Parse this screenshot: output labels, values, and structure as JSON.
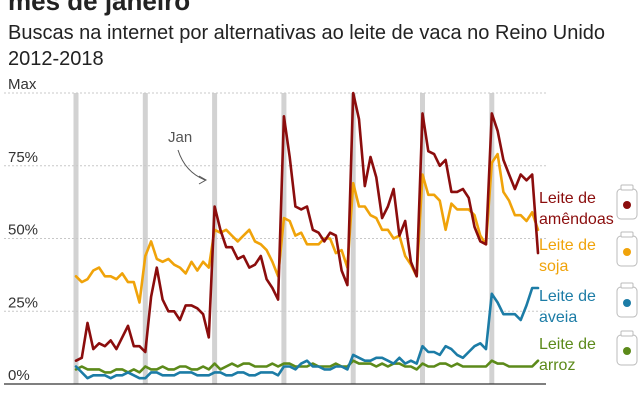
{
  "title": "mês de janeiro",
  "subtitle": "Buscas na internet por alternativas ao leite de vaca no Reino Unido 2012-2018",
  "chart_data": {
    "type": "line",
    "title": "Buscas na internet por alternativas ao leite de vaca no Reino Unido 2012-2018",
    "y_ticks": [
      {
        "value": 100,
        "label": "Max"
      },
      {
        "value": 75,
        "label": "75%"
      },
      {
        "value": 50,
        "label": "50%"
      },
      {
        "value": 25,
        "label": "25%"
      },
      {
        "value": 0,
        "label": "0%"
      }
    ],
    "ylim": [
      0,
      100
    ],
    "x_months": 81,
    "january_markers": [
      0,
      12,
      24,
      36,
      48,
      60,
      72
    ],
    "annotation": "Jan",
    "series": [
      {
        "name": "Leite de amêndoas",
        "label_lines": [
          "Leite de",
          "amêndoas"
        ],
        "color": "#8b0d0d",
        "values": [
          8,
          9,
          21,
          12,
          14,
          13,
          15,
          12,
          16,
          20,
          13,
          13,
          11,
          30,
          40,
          29,
          25,
          25,
          22,
          27,
          27,
          26,
          24,
          16,
          61,
          53,
          47,
          47,
          43,
          44,
          40,
          41,
          44,
          36,
          33,
          29,
          92,
          78,
          61,
          60,
          61,
          53,
          52,
          49,
          52,
          51,
          39,
          34,
          100,
          91,
          68,
          78,
          71,
          57,
          61,
          67,
          51,
          56,
          42,
          37,
          93,
          80,
          79,
          75,
          77,
          66,
          66,
          67,
          64,
          54,
          49,
          48,
          93,
          87,
          77,
          72,
          67,
          72,
          70,
          72,
          45
        ]
      },
      {
        "name": "Leite de soja",
        "label_lines": [
          "Leite de",
          "soja"
        ],
        "color": "#f0a30a",
        "values": [
          37,
          35,
          36,
          39,
          40,
          37,
          37,
          36,
          38,
          35,
          35,
          28,
          44,
          49,
          43,
          42,
          43,
          41,
          40,
          38,
          42,
          39,
          42,
          40,
          53,
          52,
          53,
          51,
          49,
          51,
          53,
          49,
          48,
          46,
          42,
          37,
          57,
          56,
          51,
          52,
          48,
          48,
          48,
          50,
          50,
          45,
          46,
          40,
          69,
          61,
          61,
          58,
          57,
          53,
          53,
          50,
          51,
          44,
          41,
          37,
          72,
          65,
          65,
          63,
          53,
          62,
          60,
          60,
          60,
          58,
          51,
          48,
          76,
          79,
          66,
          63,
          58,
          58,
          56,
          59,
          53
        ]
      },
      {
        "name": "Leite de aveia",
        "label_lines": [
          "Leite de",
          "aveia"
        ],
        "color": "#1c7ca6",
        "values": [
          6,
          4,
          2,
          3,
          3,
          3,
          2,
          3,
          3,
          4,
          3,
          2,
          2,
          4,
          4,
          3,
          3,
          3,
          4,
          4,
          4,
          3,
          3,
          3,
          4,
          4,
          3,
          3,
          4,
          4,
          3,
          3,
          4,
          4,
          4,
          3,
          6,
          6,
          5,
          7,
          8,
          6,
          6,
          5,
          5,
          6,
          6,
          5,
          10,
          9,
          8,
          8,
          9,
          9,
          8,
          7,
          9,
          7,
          8,
          7,
          13,
          11,
          11,
          10,
          13,
          12,
          10,
          9,
          11,
          13,
          14,
          12,
          31,
          28,
          24,
          24,
          24,
          22,
          27,
          33,
          33
        ]
      },
      {
        "name": "Leite de arroz",
        "label_lines": [
          "Leite de",
          "arroz"
        ],
        "color": "#5c8a1a",
        "values": [
          5,
          6,
          5,
          5,
          5,
          4,
          4,
          5,
          5,
          4,
          5,
          4,
          6,
          5,
          5,
          6,
          5,
          5,
          6,
          6,
          5,
          5,
          6,
          5,
          7,
          5,
          6,
          7,
          6,
          7,
          7,
          6,
          6,
          6,
          7,
          6,
          7,
          7,
          6,
          6,
          6,
          7,
          6,
          6,
          6,
          7,
          6,
          6,
          8,
          7,
          7,
          7,
          6,
          7,
          6,
          7,
          7,
          6,
          6,
          5,
          7,
          6,
          6,
          7,
          7,
          6,
          7,
          6,
          6,
          6,
          6,
          6,
          8,
          7,
          7,
          6,
          6,
          6,
          6,
          6,
          8
        ]
      }
    ]
  }
}
